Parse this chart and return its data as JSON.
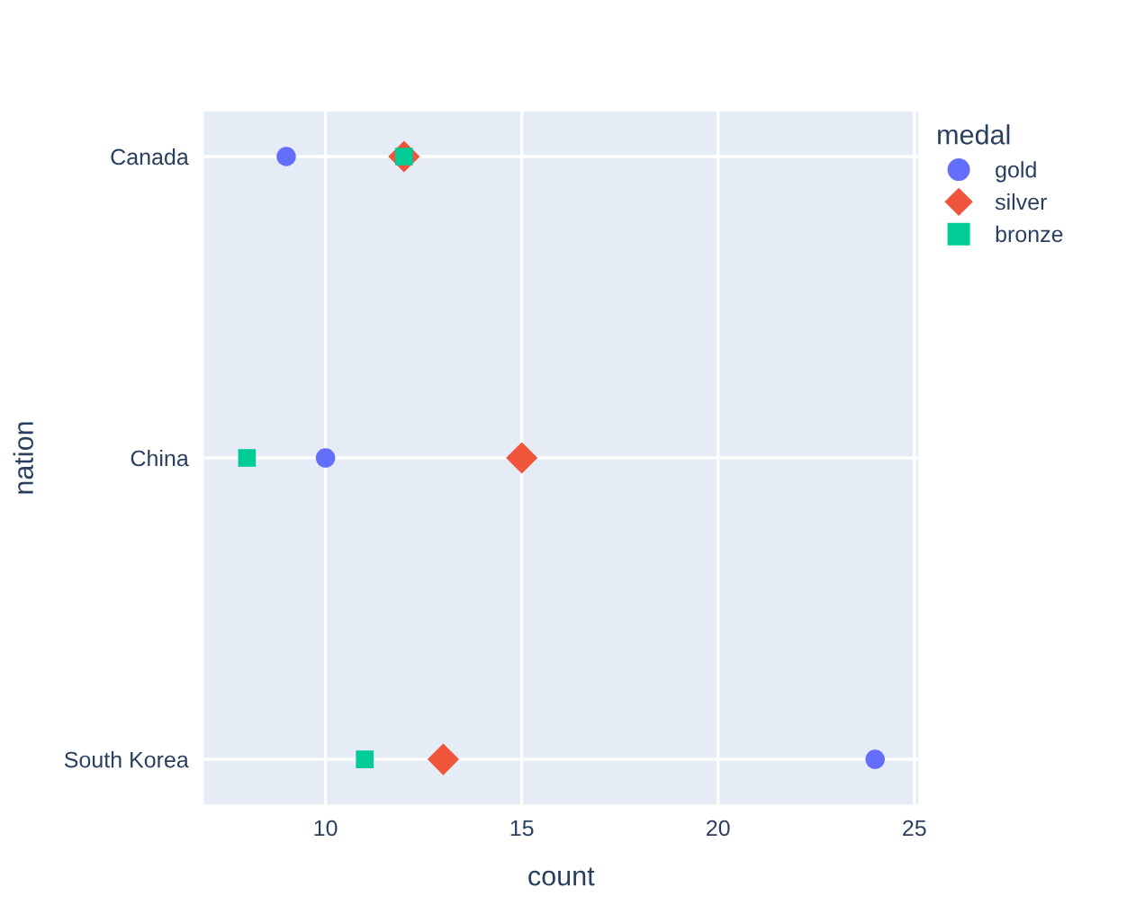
{
  "chart_data": {
    "type": "scatter",
    "orientation": "horizontal",
    "xlabel": "count",
    "ylabel": "nation",
    "legend_title": "medal",
    "categories": [
      "Canada",
      "China",
      "South Korea"
    ],
    "series": [
      {
        "name": "gold",
        "color": "#636efa",
        "marker": "circle",
        "values": [
          9,
          10,
          24
        ]
      },
      {
        "name": "silver",
        "color": "#ef553b",
        "marker": "diamond",
        "values": [
          12,
          15,
          13
        ]
      },
      {
        "name": "bronze",
        "color": "#00cc96",
        "marker": "square",
        "values": [
          12,
          8,
          11
        ]
      }
    ],
    "xlim": [
      6.9,
      25.1
    ],
    "xticks": [
      10,
      15,
      20,
      25
    ],
    "grid": true,
    "legend": "top right"
  }
}
